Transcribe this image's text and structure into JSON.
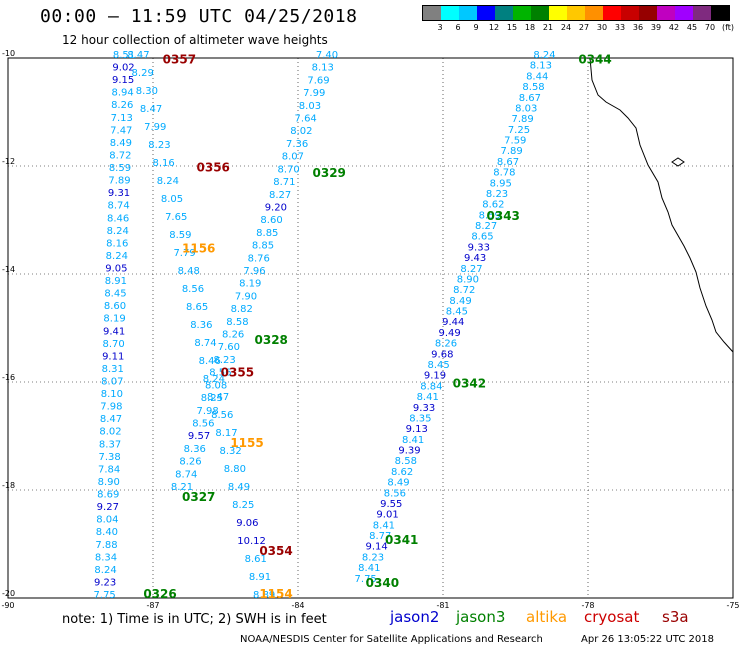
{
  "header": {
    "title": "00:00 – 11:59 UTC 04/25/2018",
    "subtitle": "12 hour collection of altimeter wave heights"
  },
  "legend": {
    "colors": [
      "#808080",
      "#00ffff",
      "#00c8ff",
      "#0000ff",
      "#008080",
      "#00b400",
      "#008000",
      "#ffff00",
      "#ffc800",
      "#ff9000",
      "#ff0000",
      "#c80000",
      "#960000",
      "#c000c0",
      "#a000ff",
      "#7f2a7f",
      "#000000"
    ],
    "labels": [
      "3",
      "6",
      "9",
      "12",
      "15",
      "18",
      "21",
      "24",
      "27",
      "30",
      "33",
      "36",
      "39",
      "42",
      "45",
      "70",
      "(ft)"
    ]
  },
  "footer": {
    "note": "note: 1) Time is in UTC; 2) SWH is in feet",
    "missions": [
      {
        "label": "jason2",
        "color": "#0000cc"
      },
      {
        "label": "jason3",
        "color": "#008000"
      },
      {
        "label": "altika",
        "color": "#ff9900"
      },
      {
        "label": "cryosat",
        "color": "#cc0000"
      },
      {
        "label": "s3a",
        "color": "#990000"
      }
    ],
    "credit": "NOAA/NESDIS Center for Satellite Applications and Research",
    "date": "Apr 26 13:05:22 UTC 2018"
  },
  "map": {
    "lon_range": [
      -90,
      -75
    ],
    "lat_range": [
      -20,
      -10
    ],
    "x_ticks": [
      -90,
      -87,
      -84,
      -81,
      -78,
      -75
    ],
    "x_tick_labels": [
      "-90",
      "-87",
      "-84",
      "-81",
      "-78",
      "-75"
    ],
    "y_ticks": [
      -10,
      -12,
      -14,
      -16,
      -18,
      -20
    ],
    "y_tick_labels": [
      "-10",
      "-12",
      "-14",
      "-16",
      "-18",
      "-20"
    ],
    "tracks": [
      {
        "id": "0357",
        "color": "#990000",
        "label_lon": -86.8,
        "label_lat": -10.1,
        "lon0": -87.6,
        "lat0": -10.0,
        "lon1": -88.0,
        "lat1": -20.0,
        "values": [
          "8.51",
          "9.02",
          "9.15",
          "8.94",
          "8.26",
          "7.13",
          "7.47",
          "8.49",
          "8.72",
          "8.59",
          "7.89",
          "9.31",
          "8.74",
          "8.46",
          "8.24",
          "8.16",
          "8.24",
          "9.05",
          "8.91",
          "8.45",
          "8.60",
          "8.19",
          "9.41",
          "8.70",
          "9.11",
          "8.31",
          "8.07",
          "8.10",
          "7.98",
          "8.47",
          "8.02",
          "8.37",
          "7.38",
          "7.84",
          "8.90",
          "8.69",
          "9.27",
          "8.04",
          "8.40",
          "7.88",
          "8.34",
          "8.24",
          "9.23",
          "7.75"
        ]
      },
      {
        "id": "0356",
        "color": "#990000",
        "label_lon": -86.1,
        "label_lat": -12.1,
        "lon0": -87.3,
        "lat0": -10.0,
        "lon1": -84.7,
        "lat1": -20.0,
        "values": [
          "8.47",
          "8.29",
          "8.30",
          "8.47",
          "7.99",
          "8.23",
          "8.16",
          "8.24",
          "8.05",
          "7.65",
          "8.59",
          "7.79",
          "8.48",
          "8.56",
          "8.65",
          "8.36",
          "8.74",
          "8.46",
          "8.24",
          "8.47",
          "8.56",
          "8.17",
          "8.32",
          "8.80",
          "8.49",
          "8.25",
          "9.06",
          "10.12",
          "8.61",
          "8.91",
          "8.89"
        ]
      },
      {
        "id": "0329",
        "color": "#008000",
        "label_lon": -83.7,
        "label_lat": -12.2,
        "lon0": -83.4,
        "lat0": -10.0,
        "lon1": -86.4,
        "lat1": -18.0,
        "values": [
          "7.40",
          "8.13",
          "7.69",
          "7.99",
          "8.03",
          "7.64",
          "8.02",
          "7.36",
          "8.07",
          "8.70",
          "8.71",
          "8.27",
          "9.20",
          "8.60",
          "8.85",
          "8.85",
          "8.76",
          "7.96",
          "8.19",
          "7.90",
          "8.82",
          "8.58",
          "8.26",
          "7.60",
          "8.23",
          "8.56",
          "8.08",
          "8.25",
          "7.98",
          "8.56",
          "9.57",
          "8.36",
          "8.26",
          "8.74",
          "8.21"
        ]
      },
      {
        "id": "0344",
        "color": "#008000",
        "label_lon": -78.2,
        "label_lat": -10.1,
        "lon0": -78.9,
        "lat0": -10.0,
        "lon1": -82.6,
        "lat1": -19.7,
        "values": [
          "8.24",
          "8.13",
          "8.44",
          "8.58",
          "8.67",
          "8.03",
          "7.89",
          "7.25",
          "7.59",
          "7.89",
          "8.67",
          "8.78",
          "8.95",
          "8.23",
          "8.62",
          "8.59",
          "8.27",
          "8.65",
          "9.33",
          "9.43",
          "8.27",
          "8.90",
          "8.72",
          "8.49",
          "8.45",
          "9.44",
          "9.49",
          "8.26",
          "9.68",
          "8.45",
          "9.19",
          "8.84",
          "8.41",
          "9.33",
          "8.35",
          "9.13",
          "8.41",
          "9.39",
          "8.58",
          "8.62",
          "8.49",
          "8.56",
          "9.55",
          "9.01",
          "8.41",
          "8.77",
          "9.14",
          "8.23",
          "8.41",
          "7.75"
        ]
      }
    ],
    "pass_labels": [
      {
        "id": "0357",
        "color": "#990000",
        "lon": -86.8,
        "lat": -10.1
      },
      {
        "id": "0356",
        "color": "#990000",
        "lon": -86.1,
        "lat": -12.1
      },
      {
        "id": "0329",
        "color": "#008000",
        "lon": -83.7,
        "lat": -12.2
      },
      {
        "id": "1156",
        "color": "#ff9900",
        "lon": -86.4,
        "lat": -13.6
      },
      {
        "id": "0343",
        "color": "#008000",
        "lon": -80.1,
        "lat": -13.0
      },
      {
        "id": "0344",
        "color": "#008000",
        "lon": -78.2,
        "lat": -10.1
      },
      {
        "id": "0328",
        "color": "#008000",
        "lon": -84.9,
        "lat": -15.3
      },
      {
        "id": "0355",
        "color": "#990000",
        "lon": -85.6,
        "lat": -15.9
      },
      {
        "id": "0342",
        "color": "#008000",
        "lon": -80.8,
        "lat": -16.1
      },
      {
        "id": "1155",
        "color": "#ff9900",
        "lon": -85.4,
        "lat": -17.2
      },
      {
        "id": "0327",
        "color": "#008000",
        "lon": -86.4,
        "lat": -18.2
      },
      {
        "id": "0341",
        "color": "#008000",
        "lon": -82.2,
        "lat": -19.0
      },
      {
        "id": "0354",
        "color": "#990000",
        "lon": -84.8,
        "lat": -19.2
      },
      {
        "id": "0340",
        "color": "#008000",
        "lon": -82.6,
        "lat": -19.8
      },
      {
        "id": "0326",
        "color": "#008000",
        "lon": -87.2,
        "lat": -20.0
      },
      {
        "id": "1154",
        "color": "#ff9900",
        "lon": -84.8,
        "lat": -20.0
      }
    ]
  }
}
